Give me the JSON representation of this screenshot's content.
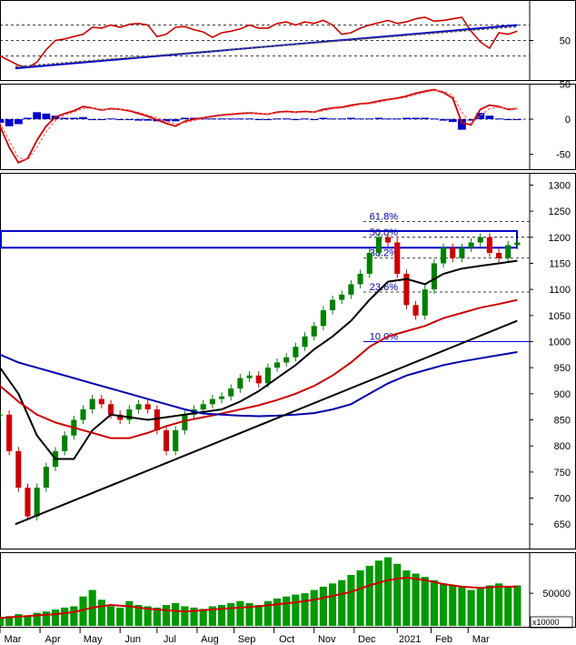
{
  "chart_data": [
    {
      "type": "line",
      "panel": "rsi",
      "yticks": [
        50
      ],
      "ylim": [
        0,
        100
      ],
      "guide_levels": [
        30,
        50,
        70
      ],
      "series": [
        {
          "color": "#cc0000",
          "x": [
            0,
            3,
            6,
            9,
            12,
            15,
            18,
            21,
            24,
            27,
            30,
            33,
            36,
            39,
            42,
            45,
            48,
            51,
            54,
            57,
            60,
            63,
            66,
            69,
            72,
            75,
            78,
            81,
            84,
            87,
            90,
            93,
            96,
            99,
            102,
            105,
            108,
            111,
            114,
            117,
            120,
            123,
            126,
            129,
            132,
            135,
            138,
            141,
            144,
            147,
            150,
            153,
            156,
            159,
            162,
            165,
            168
          ],
          "values": [
            30,
            24,
            18,
            15,
            22,
            38,
            50,
            52,
            55,
            58,
            67,
            66,
            70,
            67,
            71,
            72,
            70,
            55,
            58,
            67,
            68,
            64,
            61,
            54,
            60,
            62,
            65,
            70,
            66,
            66,
            72,
            74,
            70,
            74,
            72,
            76,
            70,
            58,
            60,
            66,
            70,
            73,
            76,
            72,
            74,
            78,
            80,
            75,
            76,
            78,
            80,
            62,
            48,
            40,
            60,
            58,
            62
          ]
        },
        {
          "color": "#0000cc",
          "x": [
            5,
            168
          ],
          "values": [
            14,
            70
          ]
        },
        {
          "color": "#555555",
          "dashed": true,
          "x": [
            5,
            168
          ],
          "values": [
            16,
            68
          ]
        }
      ]
    },
    {
      "type": "area",
      "panel": "macd",
      "yticks": [
        50,
        0,
        -50
      ],
      "ylim": [
        -70,
        48
      ],
      "guide_levels": [
        0
      ],
      "series": [
        {
          "color": "#cc0000",
          "x": [
            0,
            3,
            6,
            9,
            12,
            15,
            18,
            21,
            24,
            27,
            30,
            33,
            36,
            39,
            42,
            45,
            48,
            51,
            54,
            57,
            60,
            63,
            66,
            69,
            72,
            75,
            78,
            81,
            84,
            87,
            90,
            93,
            96,
            99,
            102,
            105,
            108,
            111,
            114,
            117,
            120,
            123,
            126,
            129,
            132,
            135,
            138,
            141,
            144,
            147,
            150,
            153,
            156,
            159,
            162,
            165,
            168
          ],
          "values": [
            -10,
            -40,
            -62,
            -56,
            -30,
            -10,
            3,
            8,
            12,
            18,
            16,
            13,
            15,
            14,
            12,
            8,
            4,
            -1,
            -6,
            -10,
            -3,
            0,
            2,
            4,
            6,
            7,
            8,
            9,
            8,
            7,
            10,
            11,
            10,
            11,
            10,
            14,
            16,
            17,
            20,
            22,
            23,
            26,
            28,
            30,
            33,
            37,
            40,
            42,
            38,
            30,
            -5,
            -8,
            14,
            20,
            18,
            14,
            15
          ]
        },
        {
          "color": "#ff6666",
          "dashed": true,
          "x": [
            0,
            3,
            6,
            9,
            12,
            15,
            18,
            21,
            24,
            27,
            30,
            33,
            36,
            39,
            42,
            45,
            48,
            51,
            54,
            57,
            60,
            63,
            66,
            69,
            72,
            75,
            78,
            81,
            84,
            87,
            90,
            93,
            96,
            99,
            102,
            105,
            108,
            111,
            114,
            117,
            120,
            123,
            126,
            129,
            132,
            135,
            138,
            141,
            144,
            147,
            150,
            153,
            156,
            159,
            162,
            165,
            168
          ],
          "values": [
            -5,
            -30,
            -55,
            -58,
            -40,
            -18,
            -2,
            6,
            10,
            15,
            16,
            14,
            14,
            14,
            13,
            10,
            6,
            2,
            -3,
            -7,
            -5,
            -2,
            1,
            3,
            5,
            6,
            7,
            8,
            8,
            7,
            9,
            10,
            10,
            10,
            10,
            12,
            15,
            16,
            18,
            21,
            22,
            24,
            27,
            29,
            31,
            35,
            38,
            41,
            40,
            34,
            10,
            -6,
            5,
            15,
            17,
            15,
            15
          ]
        },
        {
          "color": "#0000cc",
          "type": "bar",
          "x": [
            0,
            3,
            6,
            9,
            12,
            15,
            18,
            21,
            24,
            27,
            30,
            33,
            36,
            39,
            42,
            45,
            48,
            51,
            54,
            57,
            60,
            63,
            66,
            69,
            72,
            75,
            78,
            81,
            84,
            87,
            90,
            93,
            96,
            99,
            102,
            105,
            108,
            111,
            114,
            117,
            120,
            123,
            126,
            129,
            132,
            135,
            138,
            141,
            144,
            147,
            150,
            153,
            156,
            159,
            162,
            165,
            168
          ],
          "values": [
            -5,
            -10,
            -7,
            2,
            10,
            8,
            5,
            2,
            2,
            3,
            0,
            -1,
            1,
            0,
            -1,
            -2,
            -2,
            -3,
            -3,
            -3,
            2,
            2,
            1,
            1,
            1,
            1,
            1,
            1,
            0,
            0,
            1,
            1,
            0,
            1,
            0,
            2,
            1,
            1,
            2,
            1,
            1,
            2,
            1,
            1,
            2,
            2,
            2,
            1,
            -2,
            -4,
            -15,
            -2,
            9,
            5,
            1,
            -1,
            0
          ]
        }
      ]
    },
    {
      "type": "candlestick",
      "panel": "price",
      "yticks": [
        1300,
        1250,
        1200,
        1150,
        1100,
        1050,
        1000,
        950,
        900,
        850,
        800,
        750,
        700,
        650
      ],
      "ylim": [
        605,
        1320
      ],
      "fib_levels": [
        {
          "label": "61.8%",
          "value": 1230
        },
        {
          "label": "50.0%",
          "value": 1200
        },
        {
          "label": "38.2%",
          "value": 1160
        },
        {
          "label": "23.6%",
          "value": 1095
        },
        {
          "label": "10.0%",
          "value": 1000
        }
      ],
      "resistance_zone": [
        1180,
        1212
      ],
      "close": {
        "x": [
          0,
          3,
          6,
          9,
          12,
          15,
          18,
          21,
          24,
          27,
          30,
          33,
          36,
          39,
          42,
          45,
          48,
          51,
          54,
          57,
          60,
          63,
          66,
          69,
          72,
          75,
          78,
          81,
          84,
          87,
          90,
          93,
          96,
          99,
          102,
          105,
          108,
          111,
          114,
          117,
          120,
          123,
          126,
          129,
          132,
          135,
          138,
          141,
          144,
          147,
          150,
          153,
          156,
          159,
          162,
          165,
          168
        ],
        "values": [
          860,
          790,
          720,
          665,
          720,
          760,
          790,
          820,
          850,
          870,
          890,
          880,
          860,
          850,
          870,
          880,
          870,
          830,
          790,
          830,
          860,
          870,
          880,
          890,
          895,
          910,
          930,
          935,
          920,
          950,
          960,
          970,
          990,
          1010,
          1030,
          1060,
          1080,
          1090,
          1110,
          1130,
          1170,
          1200,
          1190,
          1130,
          1070,
          1050,
          1100,
          1150,
          1180,
          1160,
          1180,
          1190,
          1200,
          1170,
          1160,
          1185,
          1190
        ]
      },
      "series": [
        {
          "color": "#000000",
          "label": "ma_short",
          "x": [
            0,
            6,
            12,
            18,
            24,
            30,
            36,
            42,
            48,
            54,
            60,
            66,
            72,
            78,
            84,
            90,
            96,
            102,
            108,
            114,
            120,
            126,
            132,
            138,
            144,
            150,
            156,
            162,
            168
          ],
          "values": [
            950,
            900,
            820,
            775,
            775,
            830,
            860,
            855,
            850,
            855,
            860,
            865,
            870,
            885,
            905,
            930,
            955,
            985,
            1010,
            1040,
            1080,
            1115,
            1120,
            1110,
            1130,
            1140,
            1145,
            1150,
            1155
          ]
        },
        {
          "color": "#cc0000",
          "label": "ma_mid",
          "x": [
            0,
            6,
            12,
            18,
            24,
            30,
            36,
            42,
            48,
            54,
            60,
            66,
            72,
            78,
            84,
            90,
            96,
            102,
            108,
            114,
            120,
            126,
            132,
            138,
            144,
            150,
            156,
            162,
            168
          ],
          "values": [
            915,
            885,
            860,
            845,
            835,
            825,
            815,
            815,
            825,
            838,
            848,
            855,
            862,
            870,
            878,
            888,
            900,
            915,
            935,
            960,
            990,
            1010,
            1020,
            1030,
            1045,
            1055,
            1065,
            1072,
            1080
          ]
        },
        {
          "color": "#0000aa",
          "label": "ma_long",
          "x": [
            0,
            6,
            12,
            18,
            24,
            30,
            36,
            42,
            48,
            54,
            60,
            66,
            72,
            78,
            84,
            90,
            96,
            102,
            108,
            114,
            120,
            126,
            132,
            138,
            144,
            150,
            156,
            162,
            168
          ],
          "values": [
            975,
            960,
            950,
            940,
            930,
            920,
            910,
            900,
            890,
            880,
            870,
            862,
            860,
            858,
            857,
            858,
            860,
            863,
            870,
            880,
            900,
            920,
            935,
            945,
            955,
            962,
            968,
            974,
            980
          ]
        },
        {
          "color": "#000000",
          "label": "trendline",
          "x": [
            5,
            168
          ],
          "values": [
            650,
            1040
          ]
        }
      ]
    },
    {
      "type": "bar",
      "panel": "volume",
      "yticks": [
        50000
      ],
      "unit_label": "x10000",
      "ylim": [
        0,
        110000
      ],
      "x": [
        0,
        3,
        6,
        9,
        12,
        15,
        18,
        21,
        24,
        27,
        30,
        33,
        36,
        39,
        42,
        45,
        48,
        51,
        54,
        57,
        60,
        63,
        66,
        69,
        72,
        75,
        78,
        81,
        84,
        87,
        90,
        93,
        96,
        99,
        102,
        105,
        108,
        111,
        114,
        117,
        120,
        123,
        126,
        129,
        132,
        135,
        138,
        141,
        144,
        147,
        150,
        153,
        156,
        159,
        162,
        165,
        168
      ],
      "values": [
        14000,
        15000,
        18000,
        16000,
        20000,
        22000,
        25000,
        28000,
        30000,
        45000,
        55000,
        40000,
        30000,
        28000,
        38000,
        32000,
        30000,
        28000,
        32000,
        35000,
        30000,
        28000,
        26000,
        30000,
        32000,
        35000,
        38000,
        35000,
        32000,
        38000,
        42000,
        45000,
        48000,
        50000,
        55000,
        60000,
        65000,
        70000,
        78000,
        85000,
        92000,
        100000,
        105000,
        95000,
        85000,
        80000,
        75000,
        70000,
        65000,
        62000,
        60000,
        55000,
        58000,
        62000,
        65000,
        60000,
        62000
      ],
      "series": [
        {
          "color": "#cc0000",
          "label": "volume_ma",
          "x": [
            0,
            6,
            12,
            18,
            24,
            30,
            36,
            42,
            48,
            54,
            60,
            66,
            72,
            78,
            84,
            90,
            96,
            102,
            108,
            114,
            120,
            126,
            132,
            138,
            144,
            150,
            156,
            162,
            168
          ],
          "values": [
            12000,
            14000,
            16000,
            18000,
            21000,
            28000,
            32000,
            30000,
            26000,
            24000,
            22000,
            24000,
            26000,
            28000,
            30000,
            33000,
            36000,
            40000,
            46000,
            52000,
            62000,
            70000,
            74000,
            70000,
            64000,
            60000,
            58000,
            60000,
            60000
          ]
        }
      ]
    }
  ],
  "x_axis": {
    "ticks": [
      "Mar",
      "Apr",
      "May",
      "Jun",
      "Jul",
      "Aug",
      "Sep",
      "Oct",
      "Nov",
      "Dec",
      "2021",
      "Feb",
      "Mar"
    ],
    "x": [
      0,
      13,
      26,
      39,
      51,
      64,
      76,
      89,
      102,
      115,
      129,
      140,
      152
    ]
  }
}
